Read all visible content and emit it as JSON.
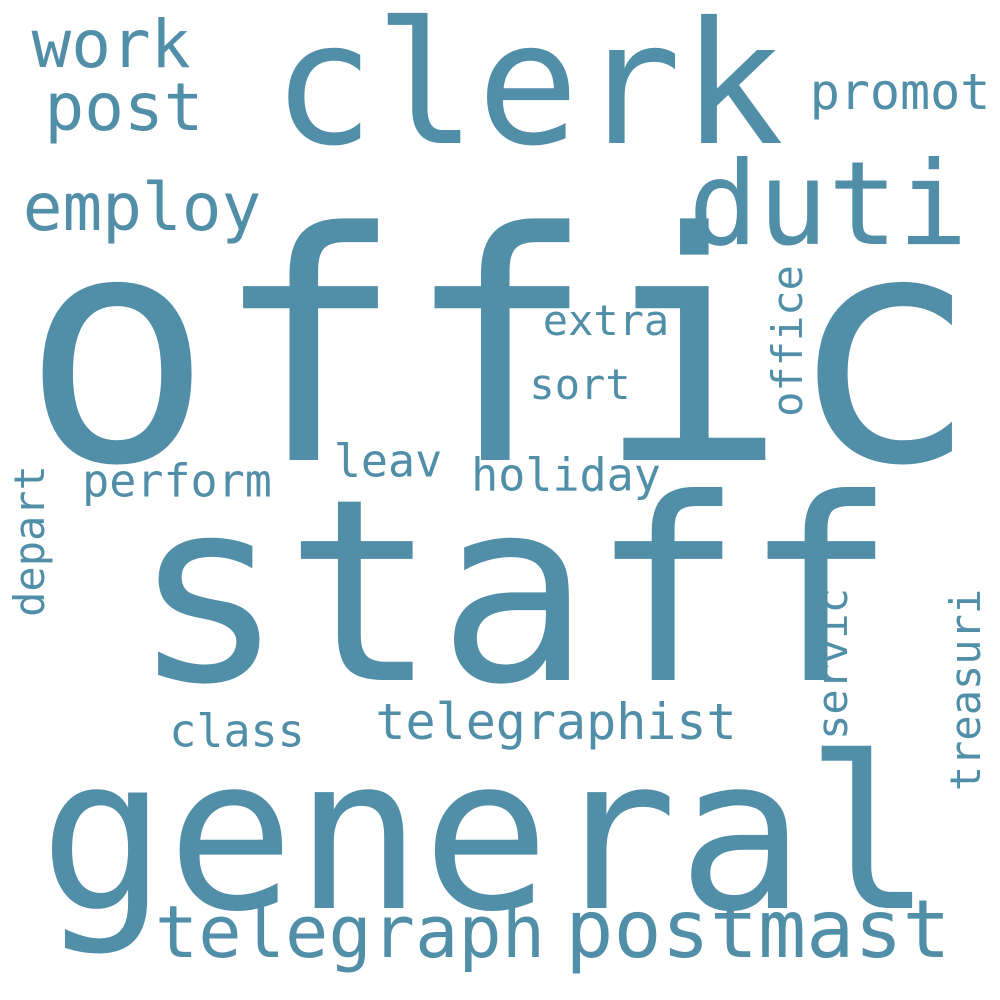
{
  "colors": {
    "word": "#518ea8",
    "background": "#ffffff"
  },
  "words": {
    "offic": "offic",
    "staff": "staff",
    "general": "general",
    "clerk": "clerk",
    "duti": "duti",
    "postmast": "postmast",
    "telegraph": "telegraph",
    "work": "work",
    "post": "post",
    "employ": "employ",
    "promot": "promot",
    "telegraphist": "telegraphist",
    "holiday": "holiday",
    "perform": "perform",
    "leav": "leav",
    "class": "class",
    "extra": "extra",
    "sort": "sort",
    "office": "office",
    "depart": "depart",
    "servic": "servic",
    "treasuri": "treasuri"
  }
}
